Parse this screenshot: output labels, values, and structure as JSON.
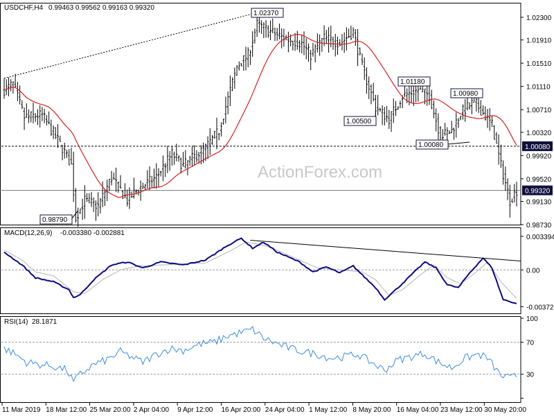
{
  "header": {
    "symbol": "USDCHF,H4",
    "ohlc": "0.99463 0.99562 0.99163 0.99320"
  },
  "watermark": "ActionForex.com",
  "colors": {
    "candle": "#000000",
    "ma": "#d42020",
    "macd": "#0a0a80",
    "signal": "#b4b4b4",
    "rsi": "#3c8cdc",
    "trendline": "#000000",
    "label_bg_dark": "#10103c"
  },
  "chart_data": [
    {
      "type": "candlestick",
      "title": "USDCHF,H4",
      "ylim": [
        0.9873,
        1.0255
      ],
      "y_ticks": [
        "1.02300",
        "1.01910",
        "1.01510",
        "1.01110",
        "1.00710",
        "1.00320",
        "0.99920",
        "0.99520",
        "0.99130",
        "0.98730"
      ],
      "x_ticks": [
        "11 Mar 2019",
        "18 Mar 12:00",
        "25 Mar 20:00",
        "2 Apr 04:00",
        "9 Apr 12:00",
        "16 Apr 20:00",
        "24 Apr 04:00",
        "1 May 12:00",
        "8 May 20:00",
        "16 May 04:00",
        "23 May 12:00",
        "30 May 20:00"
      ],
      "indicator": "Moving Average",
      "annotations": [
        {
          "text": "0.98790",
          "price": 0.9879
        },
        {
          "text": "1.02370",
          "price": 1.0237
        },
        {
          "text": "1.00500",
          "price": 1.005
        },
        {
          "text": "1.01180",
          "price": 1.0118
        },
        {
          "text": "1.00980",
          "price": 1.0098
        },
        {
          "text": "1.00080",
          "price": 1.0008
        }
      ],
      "horizontal_lines": [
        {
          "text": "1.00080",
          "price": 1.0008,
          "style": "dashed"
        },
        {
          "text": "0.99320",
          "price": 0.9932,
          "style": "solid"
        }
      ],
      "trendline": [
        {
          "bar": 0,
          "price": 1.0125
        },
        {
          "bar": 112,
          "price": 1.0237
        }
      ],
      "anchors": [
        [
          0,
          1.0105
        ],
        [
          4,
          1.0115
        ],
        [
          9,
          1.0058
        ],
        [
          17,
          1.0062
        ],
        [
          26,
          1.0005
        ],
        [
          30,
          0.9975
        ],
        [
          32,
          0.9885
        ],
        [
          36,
          0.9915
        ],
        [
          42,
          0.9905
        ],
        [
          48,
          0.9955
        ],
        [
          55,
          0.9915
        ],
        [
          60,
          0.9935
        ],
        [
          68,
          0.9955
        ],
        [
          75,
          0.9995
        ],
        [
          80,
          0.9975
        ],
        [
          90,
          1.0005
        ],
        [
          96,
          1.0035
        ],
        [
          104,
          1.0145
        ],
        [
          109,
          1.0165
        ],
        [
          113,
          1.0218
        ],
        [
          119,
          1.0205
        ],
        [
          127,
          1.0192
        ],
        [
          133,
          1.0185
        ],
        [
          137,
          1.0165
        ],
        [
          143,
          1.0195
        ],
        [
          150,
          1.0185
        ],
        [
          156,
          1.0205
        ],
        [
          160,
          1.0145
        ],
        [
          166,
          1.0075
        ],
        [
          172,
          1.0055
        ],
        [
          178,
          1.0095
        ],
        [
          185,
          1.0105
        ],
        [
          190,
          1.0095
        ],
        [
          195,
          1.0025
        ],
        [
          200,
          1.0035
        ],
        [
          204,
          1.0065
        ],
        [
          210,
          1.0085
        ],
        [
          214,
          1.0065
        ],
        [
          218,
          1.0045
        ],
        [
          222,
          0.9975
        ],
        [
          226,
          0.9915
        ],
        [
          229,
          0.9932
        ]
      ]
    },
    {
      "type": "line",
      "title": "MACD(12,26,9)",
      "values_text": "-0.003380 -0.002881",
      "ylim": [
        -0.0044,
        0.0043
      ],
      "y_ticks": [
        "0.003394",
        "0.00",
        "-0.003727"
      ],
      "series": [
        {
          "name": "",
          "anchors": [
            [
              0,
              0.0018
            ],
            [
              8,
              0.0005
            ],
            [
              14,
              -0.0008
            ],
            [
              22,
              -0.0012
            ],
            [
              29,
              -0.002
            ],
            [
              31,
              -0.0028
            ],
            [
              34,
              -0.0025
            ],
            [
              40,
              -0.001
            ],
            [
              48,
              0.0005
            ],
            [
              55,
              0.0008
            ],
            [
              62,
              0.0002
            ],
            [
              70,
              0.0008
            ],
            [
              80,
              0.0005
            ],
            [
              90,
              0.001
            ],
            [
              100,
              0.0025
            ],
            [
              106,
              0.0032
            ],
            [
              111,
              0.0022
            ],
            [
              116,
              0.0028
            ],
            [
              122,
              0.0018
            ],
            [
              132,
              0.0008
            ],
            [
              138,
              -0.0002
            ],
            [
              144,
              0.0003
            ],
            [
              150,
              -0.0003
            ],
            [
              156,
              0.0004
            ],
            [
              160,
              -0.0005
            ],
            [
              166,
              -0.0018
            ],
            [
              170,
              -0.003
            ],
            [
              176,
              -0.0018
            ],
            [
              182,
              -0.0005
            ],
            [
              188,
              0.0008
            ],
            [
              193,
              0.0002
            ],
            [
              198,
              -0.0015
            ],
            [
              203,
              -0.0018
            ],
            [
              208,
              -0.0003
            ],
            [
              214,
              0.0012
            ],
            [
              218,
              0.0002
            ],
            [
              223,
              -0.003
            ],
            [
              229,
              -0.0034
            ]
          ]
        },
        {
          "name": "",
          "anchors": [
            [
              0,
              0.002
            ],
            [
              8,
              0.001
            ],
            [
              14,
              -0.0002
            ],
            [
              22,
              -0.0006
            ],
            [
              31,
              -0.0022
            ],
            [
              36,
              -0.0024
            ],
            [
              44,
              -0.001
            ],
            [
              52,
              0.0
            ],
            [
              60,
              0.0004
            ],
            [
              70,
              0.0005
            ],
            [
              80,
              0.0006
            ],
            [
              90,
              0.0007
            ],
            [
              100,
              0.0018
            ],
            [
              108,
              0.0028
            ],
            [
              114,
              0.0026
            ],
            [
              120,
              0.0022
            ],
            [
              130,
              0.0012
            ],
            [
              140,
              0.0002
            ],
            [
              150,
              0.0
            ],
            [
              160,
              -0.0002
            ],
            [
              166,
              -0.001
            ],
            [
              172,
              -0.0026
            ],
            [
              178,
              -0.002
            ],
            [
              186,
              -0.0005
            ],
            [
              192,
              0.0005
            ],
            [
              198,
              -0.0008
            ],
            [
              204,
              -0.0014
            ],
            [
              210,
              -0.0004
            ],
            [
              216,
              0.0008
            ],
            [
              222,
              -0.0012
            ],
            [
              229,
              -0.0029
            ]
          ]
        }
      ],
      "trendline": [
        {
          "bar": 110,
          "value": 0.003
        },
        {
          "bar": 230,
          "value": 0.0009
        }
      ]
    },
    {
      "type": "line",
      "title": "RSI(14)",
      "value_text": "28.1871",
      "ylim": [
        0,
        100
      ],
      "y_ticks": [
        "100",
        "70",
        "30",
        "0"
      ],
      "levels": [
        70,
        30
      ],
      "series": [
        {
          "name": "",
          "anchors": [
            [
              0,
              62
            ],
            [
              5,
              55
            ],
            [
              10,
              45
            ],
            [
              16,
              42
            ],
            [
              22,
              40
            ],
            [
              28,
              35
            ],
            [
              31,
              20
            ],
            [
              34,
              30
            ],
            [
              40,
              42
            ],
            [
              46,
              48
            ],
            [
              52,
              58
            ],
            [
              58,
              50
            ],
            [
              62,
              45
            ],
            [
              68,
              55
            ],
            [
              74,
              62
            ],
            [
              80,
              60
            ],
            [
              88,
              68
            ],
            [
              94,
              70
            ],
            [
              100,
              78
            ],
            [
              106,
              82
            ],
            [
              111,
              86
            ],
            [
              116,
              75
            ],
            [
              122,
              68
            ],
            [
              128,
              62
            ],
            [
              134,
              58
            ],
            [
              140,
              55
            ],
            [
              146,
              50
            ],
            [
              152,
              52
            ],
            [
              158,
              55
            ],
            [
              164,
              45
            ],
            [
              170,
              35
            ],
            [
              176,
              48
            ],
            [
              182,
              52
            ],
            [
              188,
              56
            ],
            [
              194,
              45
            ],
            [
              200,
              38
            ],
            [
              206,
              50
            ],
            [
              212,
              55
            ],
            [
              216,
              50
            ],
            [
              222,
              28
            ],
            [
              226,
              25
            ],
            [
              229,
              28
            ]
          ]
        }
      ]
    }
  ]
}
